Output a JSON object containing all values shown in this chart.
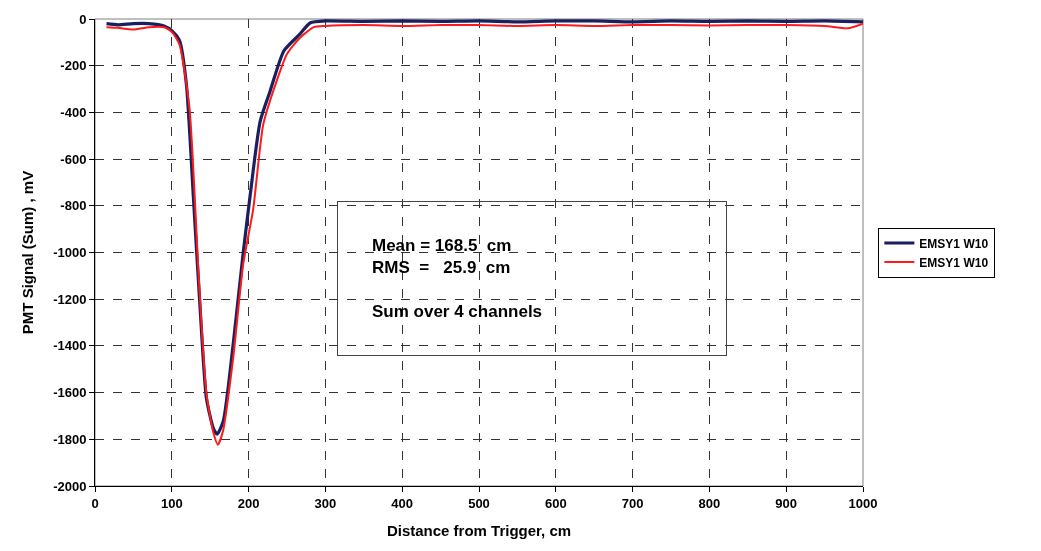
{
  "chart_data": {
    "type": "line",
    "xlabel": "Distance from Trigger, cm",
    "ylabel": "PMT Signal (Sum) , mV",
    "xlim": [
      0,
      1000
    ],
    "ylim": [
      -2000,
      0
    ],
    "xticks": [
      0,
      100,
      200,
      300,
      400,
      500,
      600,
      700,
      800,
      900,
      1000
    ],
    "yticks": [
      -2000,
      -1800,
      -1600,
      -1400,
      -1200,
      -1000,
      -800,
      -600,
      -400,
      -200,
      0
    ],
    "grid": true,
    "legend": "right",
    "line_style": "solid",
    "marker": "none",
    "annotations": [
      "Mean = 168.5  cm\nRMS  =   25.9  cm\n\nSum over 4 channels"
    ],
    "series": [
      {
        "name": "EMSY1 W10",
        "color": "#1a1f5e",
        "x": [
          15,
          30,
          50,
          70,
          90,
          100,
          110,
          119,
          128,
          137,
          145,
          154,
          159,
          167,
          180,
          193,
          202,
          215,
          228,
          246,
          267,
          280,
          300,
          350,
          400,
          450,
          500,
          550,
          600,
          650,
          700,
          750,
          800,
          850,
          900,
          950,
          1000
        ],
        "values": [
          -20,
          -25,
          -20,
          -20,
          -30,
          -50,
          -92,
          -280,
          -756,
          -1247,
          -1622,
          -1752,
          -1778,
          -1723,
          -1391,
          -1001,
          -756,
          -439,
          -309,
          -136,
          -64,
          -17,
          -8,
          -10,
          -8,
          -10,
          -8,
          -12,
          -8,
          -8,
          -12,
          -8,
          -10,
          -8,
          -10,
          -8,
          -12
        ]
      },
      {
        "name": "EMSY1 W10",
        "color": "#ff1a1a",
        "x": [
          15,
          30,
          50,
          70,
          90,
          100,
          110,
          123,
          135,
          145,
          154,
          160,
          167,
          180,
          193,
          206,
          219,
          235,
          250,
          267,
          285,
          300,
          350,
          400,
          450,
          500,
          550,
          600,
          650,
          700,
          750,
          800,
          850,
          900,
          950,
          980,
          1000
        ],
        "values": [
          -35,
          -38,
          -45,
          -35,
          -35,
          -55,
          -110,
          -381,
          -1100,
          -1600,
          -1770,
          -1823,
          -1760,
          -1450,
          -1050,
          -814,
          -453,
          -280,
          -150,
          -80,
          -35,
          -30,
          -26,
          -30,
          -26,
          -26,
          -30,
          -26,
          -30,
          -26,
          -26,
          -28,
          -26,
          -26,
          -30,
          -40,
          -20
        ]
      }
    ]
  }
}
